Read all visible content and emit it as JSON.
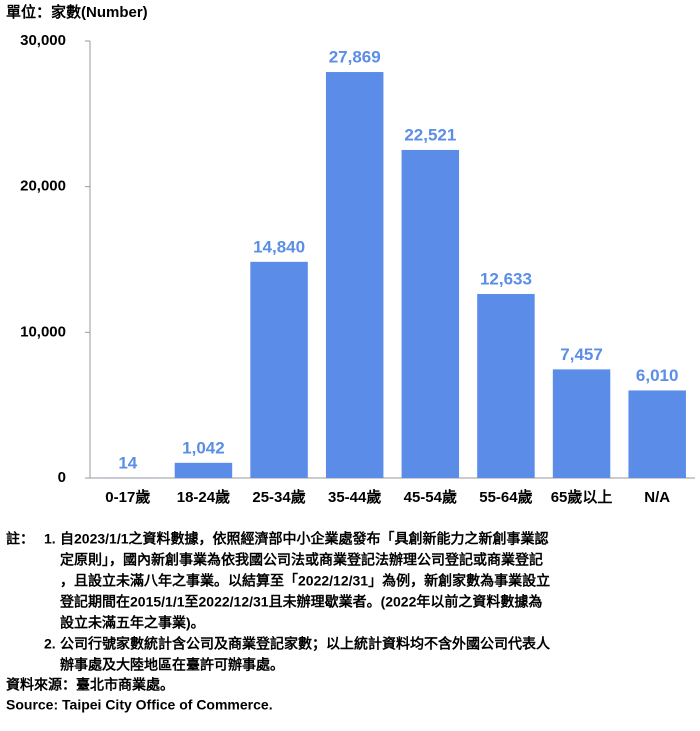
{
  "chart_data": {
    "type": "bar",
    "unit_label": "單位：家數(Number)",
    "categories": [
      "0-17歲",
      "18-24歲",
      "25-34歲",
      "35-44歲",
      "45-54歲",
      "55-64歲",
      "65歲以上",
      "N/A"
    ],
    "values": [
      14,
      1042,
      14840,
      27869,
      22521,
      12633,
      7457,
      6010
    ],
    "value_labels": [
      "14",
      "1,042",
      "14,840",
      "27,869",
      "22,521",
      "12,633",
      "7,457",
      "6,010"
    ],
    "color": "#5a8ce8",
    "ylim": [
      0,
      30000
    ],
    "yticks": [
      0,
      {
        "value": 10000,
        "label": "10,000"
      },
      {
        "value": 20000,
        "label": "20,000"
      },
      {
        "value": 30000,
        "label": "30,000"
      }
    ],
    "grid": false
  },
  "notes": {
    "label": "註：",
    "items": [
      {
        "number": "1.",
        "lines": [
          "自2023/1/1之資料數據，依照經濟部中小企業處發布「具創新能力之新創事業認",
          "定原則」，國內新創事業為依我國公司法或商業登記法辦理公司登記或商業登記",
          "，且設立未滿八年之事業。以結算至「2022/12/31」為例，新創家數為事業設立",
          "登記期間在2015/1/1至2022/12/31且未辦理歇業者。(2022年以前之資料數據為",
          "設立未滿五年之事業)。"
        ]
      },
      {
        "number": "2.",
        "lines": [
          "公司行號家數統計含公司及商業登記家數；以上統計資料均不含外國公司代表人",
          "辦事處及大陸地區在臺許可辦事處。"
        ]
      }
    ]
  },
  "source_zh": "資料來源：臺北市商業處。",
  "source_en": "Source: Taipei City Office of Commerce."
}
